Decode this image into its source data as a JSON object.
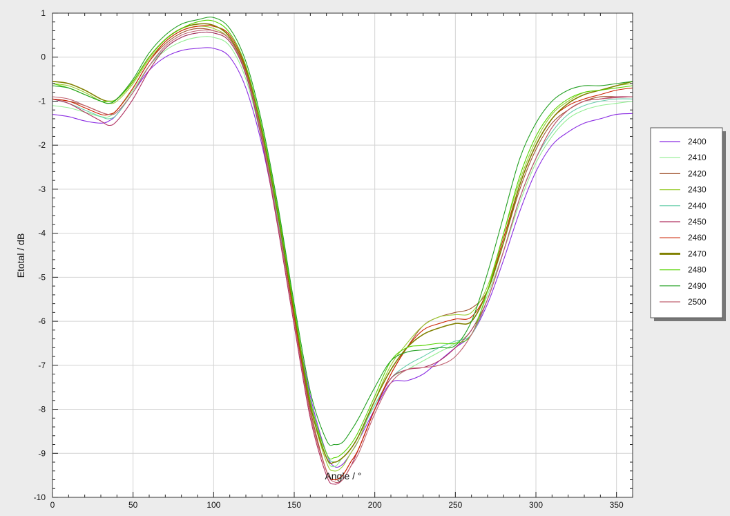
{
  "chart_data": {
    "type": "line",
    "title": "",
    "xlabel": "Angle / °",
    "ylabel": "Etotal / dB",
    "xlim": [
      0,
      360
    ],
    "ylim": [
      -10,
      1
    ],
    "grid": true,
    "legend_position": "right",
    "x_ticks": [
      0,
      50,
      100,
      150,
      200,
      250,
      300,
      350
    ],
    "y_ticks": [
      1,
      0,
      -1,
      -2,
      -3,
      -4,
      -5,
      -6,
      -7,
      -8,
      -9,
      -10
    ],
    "x": [
      0,
      10,
      20,
      30,
      35,
      40,
      50,
      60,
      70,
      80,
      90,
      100,
      110,
      120,
      130,
      140,
      150,
      160,
      170,
      175,
      180,
      185,
      190,
      200,
      210,
      220,
      230,
      240,
      250,
      260,
      270,
      280,
      290,
      300,
      310,
      320,
      330,
      340,
      350,
      360
    ],
    "series": [
      {
        "name": "2400",
        "color": "#8a2be2",
        "values": [
          -1.3,
          -1.35,
          -1.45,
          -1.5,
          -1.45,
          -1.3,
          -0.8,
          -0.3,
          0.0,
          0.15,
          0.2,
          0.2,
          0.0,
          -0.7,
          -2.0,
          -3.8,
          -5.8,
          -7.7,
          -9.0,
          -9.3,
          -9.25,
          -9.0,
          -8.7,
          -8.0,
          -7.4,
          -7.35,
          -7.2,
          -6.9,
          -6.6,
          -6.3,
          -5.6,
          -4.6,
          -3.5,
          -2.6,
          -2.0,
          -1.7,
          -1.5,
          -1.4,
          -1.3,
          -1.28
        ]
      },
      {
        "name": "2410",
        "color": "#90ee90",
        "values": [
          -1.1,
          -1.15,
          -1.25,
          -1.35,
          -1.35,
          -1.2,
          -0.75,
          -0.2,
          0.15,
          0.35,
          0.45,
          0.45,
          0.25,
          -0.5,
          -1.9,
          -3.7,
          -5.8,
          -7.8,
          -9.1,
          -9.3,
          -9.1,
          -8.9,
          -8.6,
          -7.9,
          -7.3,
          -7.1,
          -6.9,
          -6.7,
          -6.5,
          -6.2,
          -5.4,
          -4.4,
          -3.3,
          -2.4,
          -1.8,
          -1.4,
          -1.2,
          -1.1,
          -1.05,
          -1.0
        ]
      },
      {
        "name": "2420",
        "color": "#a0522d",
        "values": [
          -0.95,
          -1.0,
          -1.1,
          -1.25,
          -1.3,
          -1.2,
          -0.7,
          -0.1,
          0.3,
          0.55,
          0.65,
          0.6,
          0.4,
          -0.35,
          -1.8,
          -3.7,
          -5.9,
          -8.0,
          -9.4,
          -9.6,
          -9.5,
          -9.2,
          -8.9,
          -8.0,
          -7.2,
          -6.6,
          -6.1,
          -5.9,
          -5.8,
          -5.7,
          -5.3,
          -4.2,
          -3.0,
          -2.1,
          -1.5,
          -1.2,
          -1.0,
          -0.9,
          -0.9,
          -0.9
        ]
      },
      {
        "name": "2430",
        "color": "#9acd32",
        "values": [
          -0.6,
          -0.65,
          -0.8,
          -1.0,
          -1.05,
          -1.0,
          -0.6,
          -0.05,
          0.35,
          0.6,
          0.7,
          0.65,
          0.4,
          -0.35,
          -1.7,
          -3.6,
          -5.8,
          -7.9,
          -9.2,
          -9.4,
          -9.3,
          -9.0,
          -8.7,
          -7.8,
          -7.0,
          -6.5,
          -6.1,
          -5.9,
          -5.85,
          -5.8,
          -5.2,
          -4.0,
          -2.8,
          -1.9,
          -1.3,
          -1.0,
          -0.8,
          -0.75,
          -0.65,
          -0.6
        ]
      },
      {
        "name": "2440",
        "color": "#66cdaa",
        "values": [
          -0.95,
          -1.05,
          -1.2,
          -1.35,
          -1.4,
          -1.3,
          -0.8,
          -0.2,
          0.2,
          0.45,
          0.55,
          0.55,
          0.35,
          -0.4,
          -1.8,
          -3.7,
          -5.8,
          -7.8,
          -9.0,
          -9.2,
          -9.1,
          -8.9,
          -8.6,
          -7.9,
          -7.3,
          -7.0,
          -6.8,
          -6.6,
          -6.45,
          -6.3,
          -5.5,
          -4.4,
          -3.2,
          -2.3,
          -1.7,
          -1.3,
          -1.1,
          -1.0,
          -0.95,
          -0.95
        ]
      },
      {
        "name": "2450",
        "color": "#b03060",
        "values": [
          -0.95,
          -1.05,
          -1.25,
          -1.45,
          -1.55,
          -1.45,
          -0.95,
          -0.3,
          0.2,
          0.45,
          0.55,
          0.55,
          0.35,
          -0.4,
          -1.9,
          -3.9,
          -6.1,
          -8.2,
          -9.5,
          -9.7,
          -9.6,
          -9.3,
          -8.9,
          -8.0,
          -7.3,
          -7.1,
          -7.05,
          -6.9,
          -6.6,
          -6.2,
          -5.5,
          -4.4,
          -3.2,
          -2.3,
          -1.6,
          -1.2,
          -1.0,
          -0.95,
          -0.9,
          -0.9
        ]
      },
      {
        "name": "2460",
        "color": "#cc2200",
        "values": [
          -0.95,
          -1.0,
          -1.15,
          -1.3,
          -1.3,
          -1.2,
          -0.7,
          -0.1,
          0.35,
          0.6,
          0.7,
          0.7,
          0.5,
          -0.25,
          -1.7,
          -3.6,
          -5.9,
          -8.1,
          -9.4,
          -9.6,
          -9.5,
          -9.2,
          -8.9,
          -8.0,
          -7.2,
          -6.6,
          -6.2,
          -6.05,
          -5.95,
          -5.9,
          -5.3,
          -4.1,
          -2.9,
          -2.0,
          -1.4,
          -1.1,
          -0.95,
          -0.85,
          -0.75,
          -0.7
        ]
      },
      {
        "name": "2470",
        "color": "#808000",
        "bold": true,
        "values": [
          -0.55,
          -0.6,
          -0.75,
          -0.95,
          -1.0,
          -0.95,
          -0.55,
          0.0,
          0.4,
          0.65,
          0.75,
          0.72,
          0.45,
          -0.3,
          -1.7,
          -3.6,
          -5.8,
          -7.9,
          -9.1,
          -9.2,
          -9.1,
          -8.9,
          -8.6,
          -7.8,
          -7.1,
          -6.6,
          -6.3,
          -6.15,
          -6.05,
          -6.0,
          -5.3,
          -4.2,
          -2.9,
          -2.0,
          -1.4,
          -1.05,
          -0.85,
          -0.75,
          -0.65,
          -0.55
        ]
      },
      {
        "name": "2480",
        "color": "#55d400",
        "values": [
          -0.6,
          -0.7,
          -0.85,
          -1.0,
          -1.0,
          -0.95,
          -0.55,
          0.0,
          0.4,
          0.65,
          0.8,
          0.82,
          0.55,
          -0.2,
          -1.6,
          -3.5,
          -5.7,
          -7.8,
          -9.0,
          -9.1,
          -9.0,
          -8.8,
          -8.5,
          -7.7,
          -6.9,
          -6.6,
          -6.55,
          -6.5,
          -6.5,
          -6.3,
          -5.3,
          -4.0,
          -2.7,
          -1.8,
          -1.25,
          -0.95,
          -0.8,
          -0.75,
          -0.7,
          -0.65
        ]
      },
      {
        "name": "2490",
        "color": "#22a022",
        "values": [
          -0.65,
          -0.7,
          -0.85,
          -1.0,
          -1.05,
          -0.95,
          -0.5,
          0.1,
          0.5,
          0.75,
          0.85,
          0.9,
          0.65,
          -0.1,
          -1.5,
          -3.4,
          -5.6,
          -7.6,
          -8.7,
          -8.8,
          -8.75,
          -8.5,
          -8.2,
          -7.5,
          -6.9,
          -6.7,
          -6.65,
          -6.6,
          -6.55,
          -6.0,
          -4.9,
          -3.6,
          -2.3,
          -1.5,
          -1.0,
          -0.75,
          -0.65,
          -0.65,
          -0.6,
          -0.55
        ]
      },
      {
        "name": "2500",
        "color": "#c06070",
        "values": [
          -0.9,
          -0.95,
          -1.1,
          -1.25,
          -1.3,
          -1.25,
          -0.8,
          -0.2,
          0.25,
          0.5,
          0.6,
          0.6,
          0.4,
          -0.35,
          -1.8,
          -3.8,
          -6.0,
          -8.1,
          -9.4,
          -9.65,
          -9.6,
          -9.3,
          -9.0,
          -8.1,
          -7.4,
          -7.1,
          -7.05,
          -7.0,
          -6.8,
          -6.3,
          -5.5,
          -4.4,
          -3.2,
          -2.3,
          -1.6,
          -1.2,
          -1.0,
          -0.95,
          -0.92,
          -0.9
        ]
      }
    ]
  }
}
